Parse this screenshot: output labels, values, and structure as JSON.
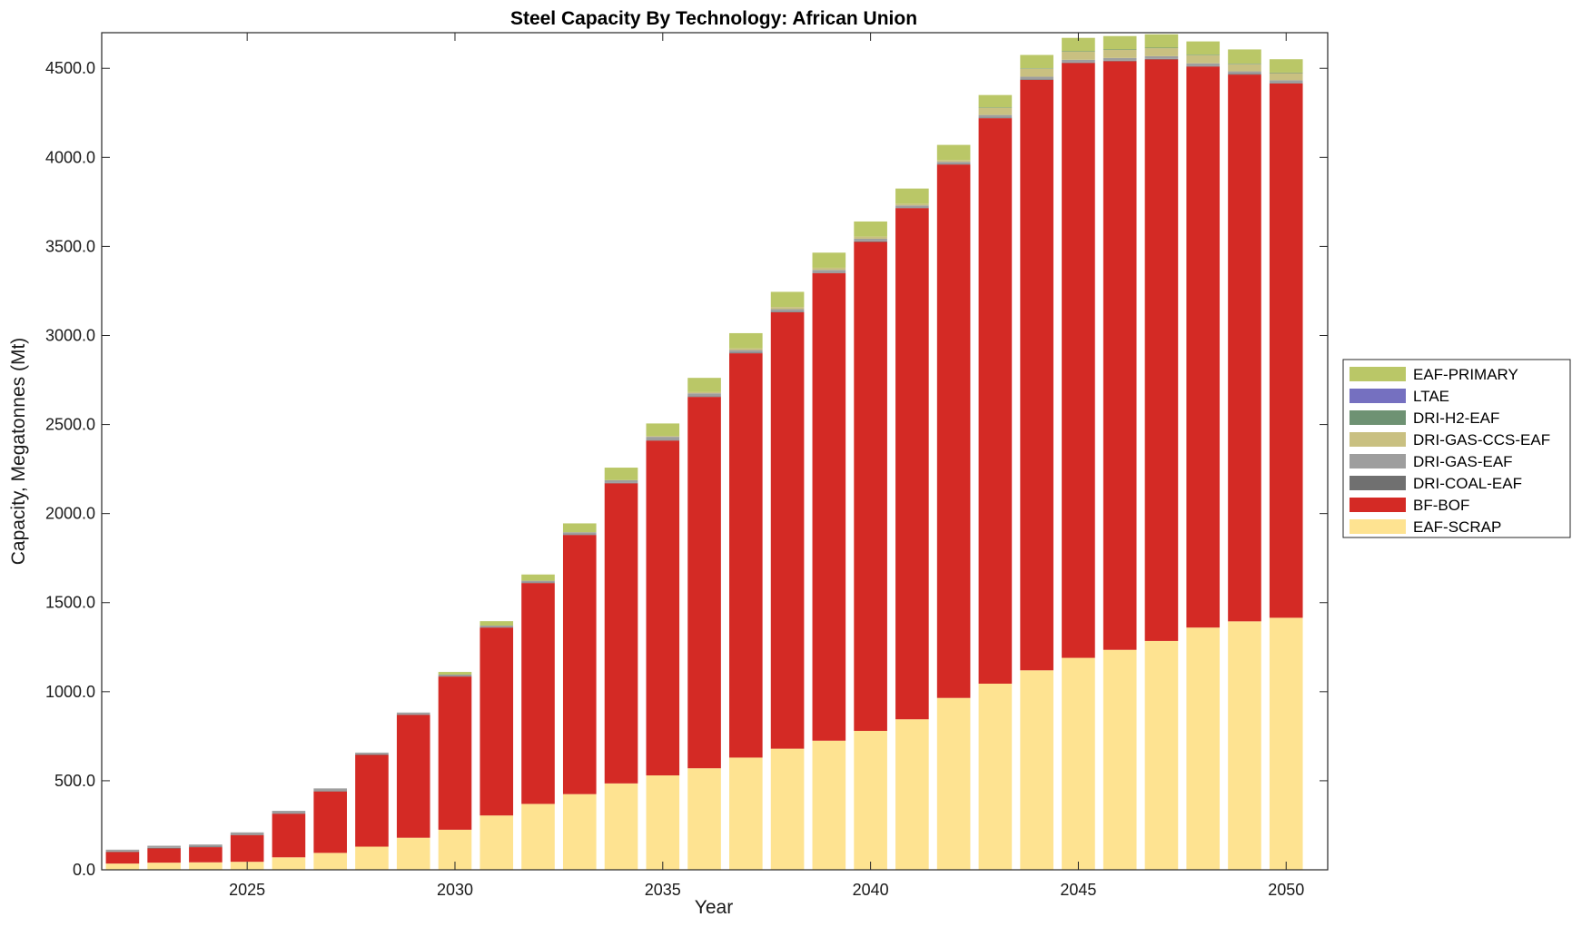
{
  "chart_data": {
    "type": "bar",
    "stacked": true,
    "title": "Steel Capacity By Technology: African Union",
    "xlabel": "Year",
    "ylabel": "Capacity, Megatonnes (Mt)",
    "xlim": [
      2021.5,
      2051.0
    ],
    "ylim": [
      0,
      4700
    ],
    "xticks": [
      2025,
      2030,
      2035,
      2040,
      2045,
      2050
    ],
    "xtick_labels": [
      "2025",
      "2030",
      "2035",
      "2040",
      "2045",
      "2050"
    ],
    "yticks": [
      0,
      500,
      1000,
      1500,
      2000,
      2500,
      3000,
      3500,
      4000,
      4500
    ],
    "ytick_labels": [
      "0.0",
      "500.0",
      "1000.0",
      "1500.0",
      "2000.0",
      "2500.0",
      "3000.0",
      "3500.0",
      "4000.0",
      "4500.0"
    ],
    "grid": false,
    "legend_position": "right",
    "categories": [
      2022,
      2023,
      2024,
      2025,
      2026,
      2027,
      2028,
      2029,
      2030,
      2031,
      2032,
      2033,
      2034,
      2035,
      2036,
      2037,
      2038,
      2039,
      2040,
      2041,
      2042,
      2043,
      2044,
      2045,
      2046,
      2047,
      2048,
      2049,
      2050
    ],
    "series": [
      {
        "name": "EAF-SCRAP",
        "color": "#fee391",
        "values": [
          35,
          40,
          42,
          45,
          70,
          95,
          130,
          180,
          225,
          305,
          370,
          425,
          485,
          530,
          570,
          630,
          680,
          725,
          780,
          845,
          965,
          1045,
          1120,
          1190,
          1235,
          1285,
          1360,
          1395,
          1415
        ]
      },
      {
        "name": "BF-BOF",
        "color": "#d42a25",
        "values": [
          65,
          80,
          85,
          150,
          245,
          345,
          515,
          690,
          860,
          1055,
          1240,
          1455,
          1685,
          1880,
          2085,
          2270,
          2450,
          2625,
          2745,
          2870,
          2995,
          3175,
          3315,
          3340,
          3305,
          3265,
          3150,
          3070,
          3000
        ]
      },
      {
        "name": "DRI-COAL-EAF",
        "color": "#707070",
        "values": [
          3,
          3,
          3,
          3,
          3,
          3,
          3,
          3,
          3,
          3,
          3,
          3,
          3,
          3,
          3,
          3,
          3,
          3,
          3,
          3,
          3,
          3,
          3,
          3,
          3,
          3,
          3,
          3,
          3
        ]
      },
      {
        "name": "DRI-GAS-EAF",
        "color": "#9e9e9e",
        "values": [
          10,
          12,
          12,
          12,
          13,
          14,
          10,
          10,
          8,
          8,
          10,
          12,
          15,
          18,
          17,
          15,
          15,
          15,
          15,
          12,
          12,
          15,
          15,
          15,
          15,
          15,
          15,
          15,
          15
        ]
      },
      {
        "name": "DRI-GAS-CCS-EAF",
        "color": "#c9c081",
        "values": [
          0,
          0,
          0,
          0,
          0,
          0,
          0,
          0,
          0,
          0,
          0,
          0,
          0,
          5,
          7,
          10,
          12,
          12,
          12,
          10,
          10,
          40,
          45,
          45,
          45,
          45,
          45,
          40,
          40
        ]
      },
      {
        "name": "DRI-H2-EAF",
        "color": "#6e9273",
        "values": [
          0,
          0,
          0,
          0,
          0,
          0,
          0,
          0,
          0,
          0,
          0,
          0,
          0,
          0,
          0,
          0,
          0,
          0,
          0,
          0,
          0,
          2,
          2,
          3,
          3,
          3,
          3,
          3,
          3
        ]
      },
      {
        "name": "LTAE",
        "color": "#7570c0",
        "values": [
          0,
          0,
          0,
          0,
          0,
          0,
          0,
          0,
          0,
          0,
          0,
          0,
          0,
          0,
          0,
          0,
          0,
          0,
          0,
          0,
          0,
          0,
          0,
          0,
          0,
          0,
          0,
          0,
          0
        ]
      },
      {
        "name": "EAF-PRIMARY",
        "color": "#bac767",
        "values": [
          0,
          0,
          0,
          0,
          0,
          0,
          0,
          0,
          15,
          25,
          35,
          50,
          70,
          70,
          80,
          85,
          85,
          85,
          85,
          85,
          85,
          70,
          75,
          75,
          75,
          75,
          75,
          80,
          75
        ]
      }
    ]
  }
}
